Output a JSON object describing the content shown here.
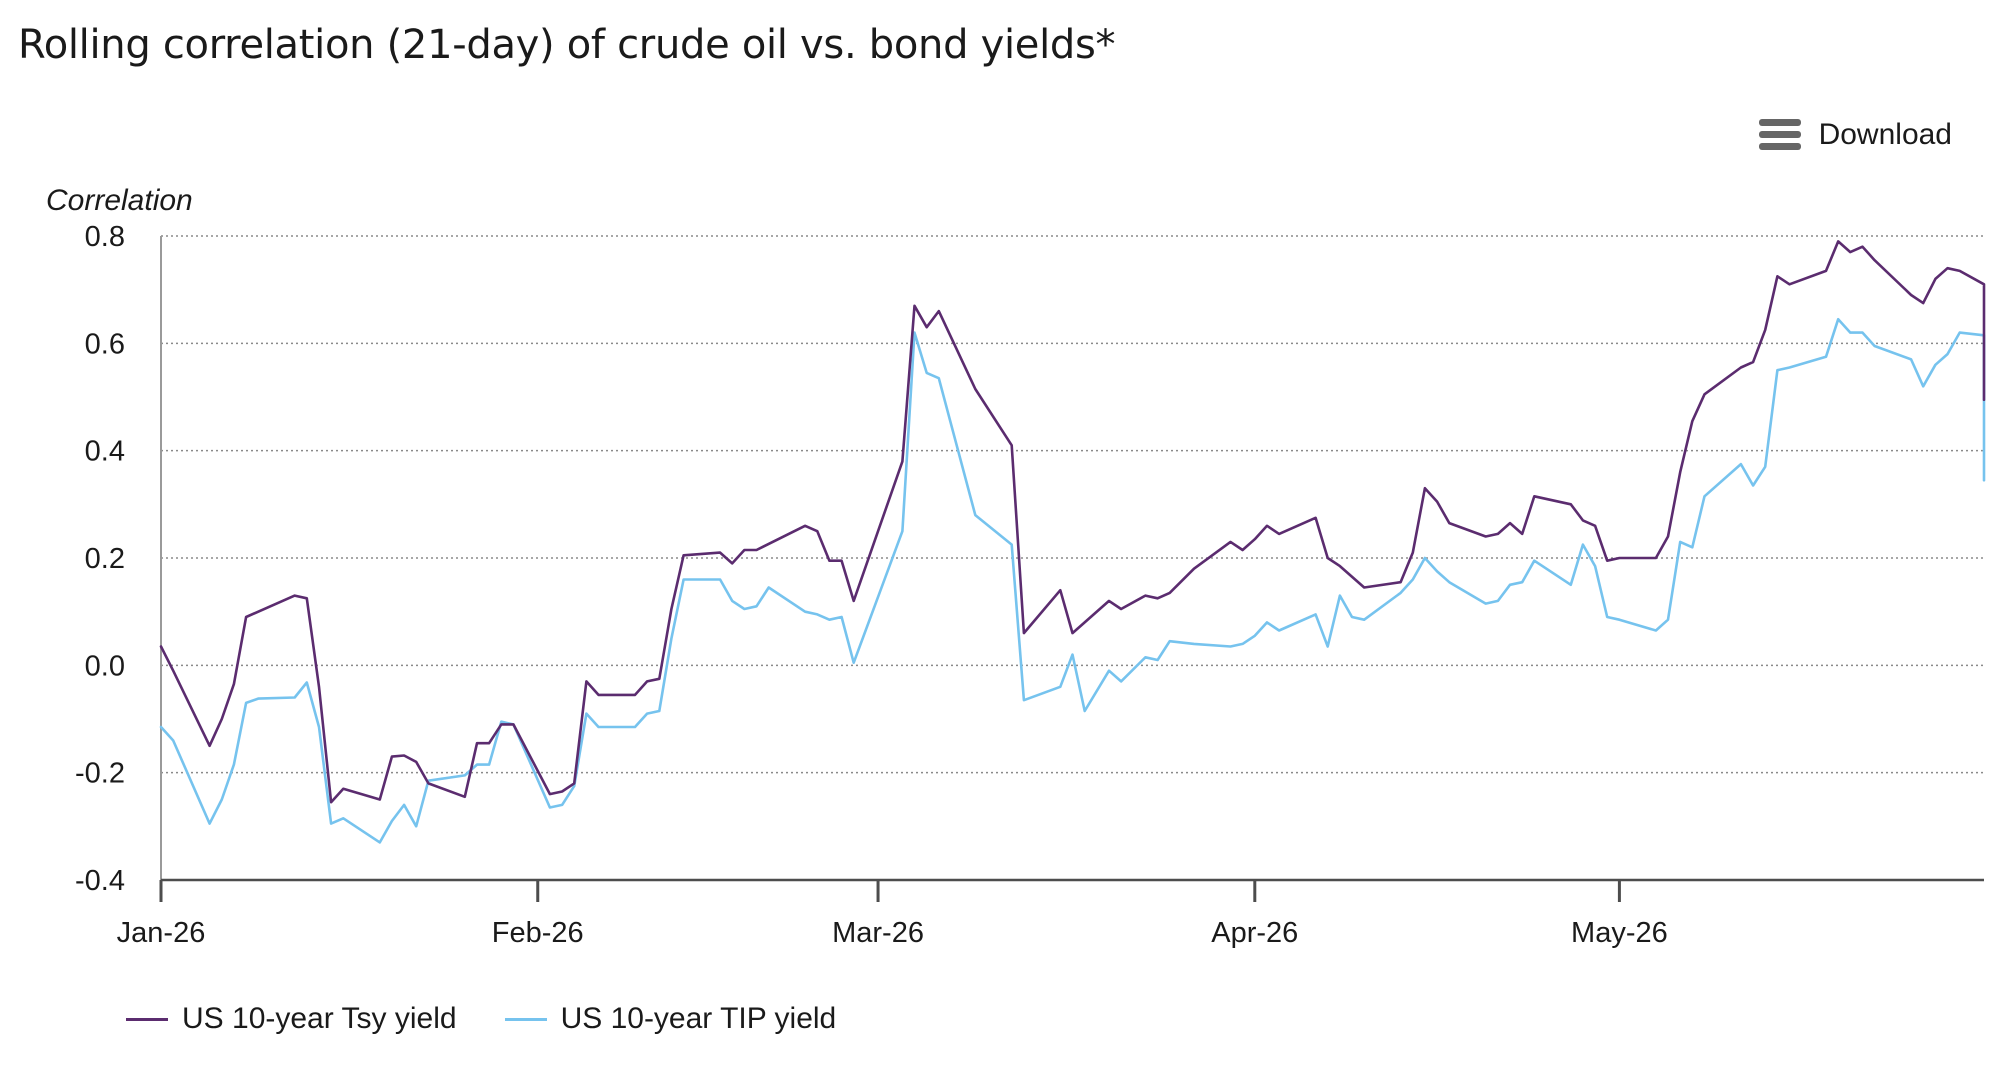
{
  "toolbar": {
    "download_label": "Download",
    "download_icon": "hamburger-menu-icon"
  },
  "chart_data": {
    "type": "line",
    "title": "Rolling correlation (21-day) of crude oil vs. bond yields*",
    "ylabel": "Correlation",
    "xlabel": "",
    "ylim": [
      -0.4,
      0.8
    ],
    "yticks": [
      "0.8",
      "0.6",
      "0.4",
      "0.2",
      "0.0",
      "-0.2",
      "-0.4"
    ],
    "xlim": [
      "2026-01-01",
      "2026-05-31"
    ],
    "xticks": [
      {
        "label": "Jan-26",
        "date": "2026-01-01"
      },
      {
        "label": "Feb-26",
        "date": "2026-02-01"
      },
      {
        "label": "Mar-26",
        "date": "2026-03-01"
      },
      {
        "label": "Apr-26",
        "date": "2026-04-01"
      },
      {
        "label": "May-26",
        "date": "2026-05-01"
      }
    ],
    "grid": true,
    "legend_position": "bottom-left",
    "series": [
      {
        "name": "US 10-year Tsy yield",
        "color": "#5b2c6f",
        "points": [
          [
            "2026-01-01",
            0.035
          ],
          [
            "2026-01-02",
            -0.01
          ],
          [
            "2026-01-05",
            -0.15
          ],
          [
            "2026-01-06",
            -0.1
          ],
          [
            "2026-01-07",
            -0.035
          ],
          [
            "2026-01-08",
            0.09
          ],
          [
            "2026-01-12",
            0.13
          ],
          [
            "2026-01-13",
            0.125
          ],
          [
            "2026-01-14",
            -0.04
          ],
          [
            "2026-01-15",
            -0.255
          ],
          [
            "2026-01-16",
            -0.23
          ],
          [
            "2026-01-19",
            -0.25
          ],
          [
            "2026-01-20",
            -0.17
          ],
          [
            "2026-01-21",
            -0.168
          ],
          [
            "2026-01-22",
            -0.18
          ],
          [
            "2026-01-23",
            -0.22
          ],
          [
            "2026-01-26",
            -0.245
          ],
          [
            "2026-01-27",
            -0.145
          ],
          [
            "2026-01-28",
            -0.145
          ],
          [
            "2026-01-29",
            -0.11
          ],
          [
            "2026-01-30",
            -0.11
          ],
          [
            "2026-02-02",
            -0.24
          ],
          [
            "2026-02-03",
            -0.235
          ],
          [
            "2026-02-04",
            -0.22
          ],
          [
            "2026-02-05",
            -0.03
          ],
          [
            "2026-02-06",
            -0.055
          ],
          [
            "2026-02-09",
            -0.055
          ],
          [
            "2026-02-10",
            -0.03
          ],
          [
            "2026-02-11",
            -0.025
          ],
          [
            "2026-02-12",
            0.105
          ],
          [
            "2026-02-13",
            0.205
          ],
          [
            "2026-02-16",
            0.21
          ],
          [
            "2026-02-17",
            0.19
          ],
          [
            "2026-02-18",
            0.215
          ],
          [
            "2026-02-19",
            0.215
          ],
          [
            "2026-02-23",
            0.26
          ],
          [
            "2026-02-24",
            0.25
          ],
          [
            "2026-02-25",
            0.195
          ],
          [
            "2026-02-26",
            0.195
          ],
          [
            "2026-02-27",
            0.12
          ],
          [
            "2026-03-03",
            0.38
          ],
          [
            "2026-03-04",
            0.67
          ],
          [
            "2026-03-05",
            0.63
          ],
          [
            "2026-03-06",
            0.66
          ],
          [
            "2026-03-09",
            0.515
          ],
          [
            "2026-03-12",
            0.41
          ],
          [
            "2026-03-13",
            0.06
          ],
          [
            "2026-03-16",
            0.14
          ],
          [
            "2026-03-17",
            0.06
          ],
          [
            "2026-03-20",
            0.12
          ],
          [
            "2026-03-21",
            0.105
          ],
          [
            "2026-03-23",
            0.13
          ],
          [
            "2026-03-24",
            0.125
          ],
          [
            "2026-03-25",
            0.135
          ],
          [
            "2026-03-27",
            0.18
          ],
          [
            "2026-03-30",
            0.23
          ],
          [
            "2026-03-31",
            0.215
          ],
          [
            "2026-04-01",
            0.235
          ],
          [
            "2026-04-02",
            0.26
          ],
          [
            "2026-04-03",
            0.245
          ],
          [
            "2026-04-06",
            0.275
          ],
          [
            "2026-04-07",
            0.2
          ],
          [
            "2026-04-08",
            0.185
          ],
          [
            "2026-04-10",
            0.145
          ],
          [
            "2026-04-13",
            0.155
          ],
          [
            "2026-04-14",
            0.21
          ],
          [
            "2026-04-15",
            0.33
          ],
          [
            "2026-04-16",
            0.305
          ],
          [
            "2026-04-17",
            0.265
          ],
          [
            "2026-04-20",
            0.24
          ],
          [
            "2026-04-21",
            0.245
          ],
          [
            "2026-04-22",
            0.265
          ],
          [
            "2026-04-23",
            0.245
          ],
          [
            "2026-04-24",
            0.315
          ],
          [
            "2026-04-27",
            0.3
          ],
          [
            "2026-04-28",
            0.27
          ],
          [
            "2026-04-29",
            0.26
          ],
          [
            "2026-04-30",
            0.195
          ],
          [
            "2026-05-01",
            0.2
          ],
          [
            "2026-05-04",
            0.2
          ],
          [
            "2026-05-05",
            0.24
          ],
          [
            "2026-05-06",
            0.36
          ],
          [
            "2026-05-07",
            0.455
          ],
          [
            "2026-05-08",
            0.505
          ],
          [
            "2026-05-11",
            0.555
          ],
          [
            "2026-05-12",
            0.565
          ],
          [
            "2026-05-13",
            0.625
          ],
          [
            "2026-05-14",
            0.725
          ],
          [
            "2026-05-15",
            0.71
          ],
          [
            "2026-05-18",
            0.735
          ],
          [
            "2026-05-19",
            0.79
          ],
          [
            "2026-05-20",
            0.77
          ],
          [
            "2026-05-21",
            0.78
          ],
          [
            "2026-05-22",
            0.755
          ],
          [
            "2026-05-25",
            0.69
          ],
          [
            "2026-05-26",
            0.675
          ],
          [
            "2026-05-27",
            0.72
          ],
          [
            "2026-05-28",
            0.74
          ],
          [
            "2026-05-29",
            0.735
          ],
          [
            "2026-06-01",
            0.71
          ],
          [
            "2026-06-02",
            0.575
          ],
          [
            "2026-06-03",
            0.575
          ],
          [
            "2026-06-04",
            0.505
          ],
          [
            "2026-06-05",
            0.495
          ]
        ]
      },
      {
        "name": "US 10-year TIP yield",
        "color": "#76c3ee",
        "points": [
          [
            "2026-01-01",
            -0.115
          ],
          [
            "2026-01-02",
            -0.14
          ],
          [
            "2026-01-05",
            -0.295
          ],
          [
            "2026-01-06",
            -0.25
          ],
          [
            "2026-01-07",
            -0.185
          ],
          [
            "2026-01-08",
            -0.07
          ],
          [
            "2026-01-09",
            -0.062
          ],
          [
            "2026-01-12",
            -0.06
          ],
          [
            "2026-01-13",
            -0.032
          ],
          [
            "2026-01-14",
            -0.115
          ],
          [
            "2026-01-15",
            -0.295
          ],
          [
            "2026-01-16",
            -0.285
          ],
          [
            "2026-01-19",
            -0.33
          ],
          [
            "2026-01-20",
            -0.29
          ],
          [
            "2026-01-21",
            -0.26
          ],
          [
            "2026-01-22",
            -0.3
          ],
          [
            "2026-01-23",
            -0.215
          ],
          [
            "2026-01-26",
            -0.205
          ],
          [
            "2026-01-27",
            -0.185
          ],
          [
            "2026-01-28",
            -0.185
          ],
          [
            "2026-01-29",
            -0.105
          ],
          [
            "2026-01-30",
            -0.11
          ],
          [
            "2026-02-02",
            -0.265
          ],
          [
            "2026-02-03",
            -0.26
          ],
          [
            "2026-02-04",
            -0.225
          ],
          [
            "2026-02-05",
            -0.09
          ],
          [
            "2026-02-06",
            -0.115
          ],
          [
            "2026-02-09",
            -0.115
          ],
          [
            "2026-02-10",
            -0.09
          ],
          [
            "2026-02-11",
            -0.085
          ],
          [
            "2026-02-12",
            0.05
          ],
          [
            "2026-02-13",
            0.16
          ],
          [
            "2026-02-16",
            0.16
          ],
          [
            "2026-02-17",
            0.12
          ],
          [
            "2026-02-18",
            0.105
          ],
          [
            "2026-02-19",
            0.11
          ],
          [
            "2026-02-20",
            0.145
          ],
          [
            "2026-02-23",
            0.1
          ],
          [
            "2026-02-24",
            0.095
          ],
          [
            "2026-02-25",
            0.085
          ],
          [
            "2026-02-26",
            0.09
          ],
          [
            "2026-02-27",
            0.005
          ],
          [
            "2026-03-03",
            0.25
          ],
          [
            "2026-03-04",
            0.62
          ],
          [
            "2026-03-05",
            0.545
          ],
          [
            "2026-03-06",
            0.535
          ],
          [
            "2026-03-09",
            0.28
          ],
          [
            "2026-03-12",
            0.225
          ],
          [
            "2026-03-13",
            -0.065
          ],
          [
            "2026-03-16",
            -0.04
          ],
          [
            "2026-03-17",
            0.02
          ],
          [
            "2026-03-18",
            -0.085
          ],
          [
            "2026-03-20",
            -0.01
          ],
          [
            "2026-03-21",
            -0.03
          ],
          [
            "2026-03-23",
            0.015
          ],
          [
            "2026-03-24",
            0.01
          ],
          [
            "2026-03-25",
            0.045
          ],
          [
            "2026-03-27",
            0.04
          ],
          [
            "2026-03-30",
            0.035
          ],
          [
            "2026-03-31",
            0.04
          ],
          [
            "2026-04-01",
            0.055
          ],
          [
            "2026-04-02",
            0.08
          ],
          [
            "2026-04-03",
            0.065
          ],
          [
            "2026-04-06",
            0.095
          ],
          [
            "2026-04-07",
            0.035
          ],
          [
            "2026-04-08",
            0.13
          ],
          [
            "2026-04-09",
            0.09
          ],
          [
            "2026-04-10",
            0.085
          ],
          [
            "2026-04-13",
            0.135
          ],
          [
            "2026-04-14",
            0.16
          ],
          [
            "2026-04-15",
            0.2
          ],
          [
            "2026-04-16",
            0.175
          ],
          [
            "2026-04-17",
            0.155
          ],
          [
            "2026-04-20",
            0.115
          ],
          [
            "2026-04-21",
            0.12
          ],
          [
            "2026-04-22",
            0.15
          ],
          [
            "2026-04-23",
            0.155
          ],
          [
            "2026-04-24",
            0.195
          ],
          [
            "2026-04-27",
            0.15
          ],
          [
            "2026-04-28",
            0.225
          ],
          [
            "2026-04-29",
            0.185
          ],
          [
            "2026-04-30",
            0.09
          ],
          [
            "2026-05-01",
            0.085
          ],
          [
            "2026-05-04",
            0.065
          ],
          [
            "2026-05-05",
            0.085
          ],
          [
            "2026-05-06",
            0.23
          ],
          [
            "2026-05-07",
            0.22
          ],
          [
            "2026-05-08",
            0.315
          ],
          [
            "2026-05-11",
            0.375
          ],
          [
            "2026-05-12",
            0.335
          ],
          [
            "2026-05-13",
            0.37
          ],
          [
            "2026-05-14",
            0.55
          ],
          [
            "2026-05-15",
            0.555
          ],
          [
            "2026-05-18",
            0.575
          ],
          [
            "2026-05-19",
            0.645
          ],
          [
            "2026-05-20",
            0.62
          ],
          [
            "2026-05-21",
            0.62
          ],
          [
            "2026-05-22",
            0.595
          ],
          [
            "2026-05-25",
            0.57
          ],
          [
            "2026-05-26",
            0.52
          ],
          [
            "2026-05-27",
            0.56
          ],
          [
            "2026-05-28",
            0.58
          ],
          [
            "2026-05-29",
            0.62
          ],
          [
            "2026-06-01",
            0.615
          ],
          [
            "2026-06-02",
            0.44
          ],
          [
            "2026-06-03",
            0.455
          ],
          [
            "2026-06-04",
            0.365
          ],
          [
            "2026-06-05",
            0.345
          ]
        ]
      }
    ]
  }
}
